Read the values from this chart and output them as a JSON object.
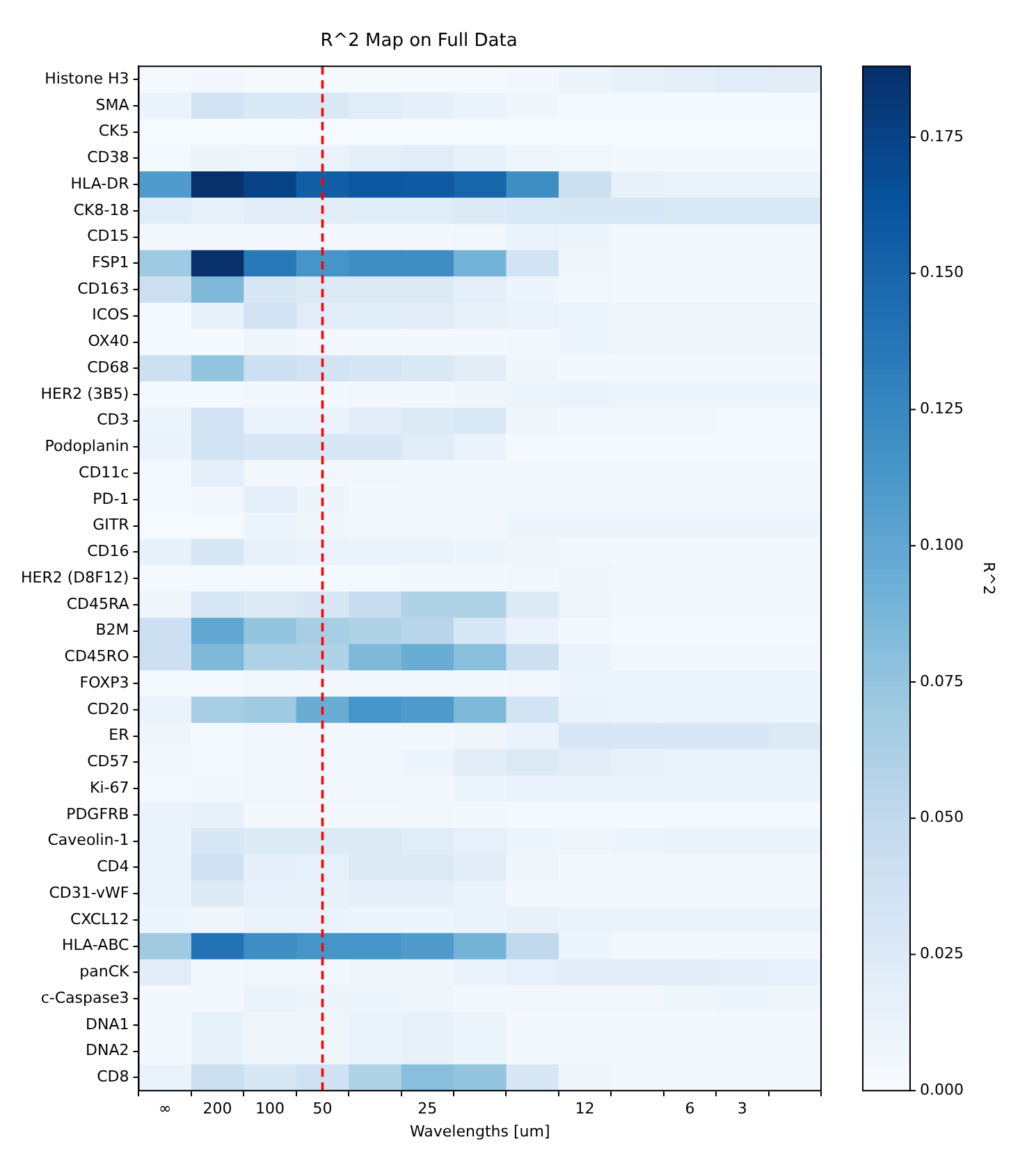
{
  "chart_data": {
    "type": "heatmap",
    "title": "R^2 Map on Full Data",
    "xlabel": "Wavelengths [um]",
    "clabel": "R^2",
    "categories": [
      "∞",
      "200",
      "100",
      "50",
      null,
      "25",
      null,
      null,
      "12",
      null,
      "6",
      "3",
      null
    ],
    "y_categories": [
      "Histone H3",
      "SMA",
      "CK5",
      "CD38",
      "HLA-DR",
      "CK8-18",
      "CD15",
      "FSP1",
      "CD163",
      "ICOS",
      "OX40",
      "CD68",
      "HER2 (3B5)",
      "CD3",
      "Podoplanin",
      "CD11c",
      "PD-1",
      "GITR",
      "CD16",
      "HER2 (D8F12)",
      "CD45RA",
      "B2M",
      "CD45RO",
      "FOXP3",
      "CD20",
      "ER",
      "CD57",
      "Ki-67",
      "PDGFRB",
      "Caveolin-1",
      "CD4",
      "CD31-vWF",
      "CXCL12",
      "HLA-ABC",
      "panCK",
      "c-Caspase3",
      "DNA1",
      "DNA2",
      "CD8"
    ],
    "cells": [
      [
        0.003,
        0.005,
        0.003,
        0.003,
        0.003,
        0.003,
        0.003,
        0.004,
        0.01,
        0.015,
        0.018,
        0.022,
        0.02
      ],
      [
        0.012,
        0.035,
        0.028,
        0.028,
        0.022,
        0.018,
        0.012,
        0.008,
        0.003,
        0.003,
        0.003,
        0.003,
        0.003
      ],
      [
        0.002,
        0.002,
        0.002,
        0.002,
        0.002,
        0.002,
        0.002,
        0.002,
        0.002,
        0.002,
        0.002,
        0.002,
        0.002
      ],
      [
        0.003,
        0.01,
        0.008,
        0.012,
        0.018,
        0.022,
        0.015,
        0.008,
        0.006,
        0.005,
        0.005,
        0.005,
        0.005
      ],
      [
        0.11,
        0.188,
        0.175,
        0.155,
        0.16,
        0.158,
        0.15,
        0.12,
        0.04,
        0.015,
        0.012,
        0.012,
        0.012
      ],
      [
        0.022,
        0.015,
        0.02,
        0.02,
        0.022,
        0.022,
        0.025,
        0.028,
        0.03,
        0.03,
        0.028,
        0.028,
        0.028
      ],
      [
        0.006,
        0.004,
        0.004,
        0.004,
        0.004,
        0.004,
        0.006,
        0.012,
        0.01,
        0.005,
        0.005,
        0.005,
        0.005
      ],
      [
        0.07,
        0.188,
        0.135,
        0.115,
        0.12,
        0.12,
        0.09,
        0.035,
        0.008,
        0.004,
        0.004,
        0.004,
        0.004
      ],
      [
        0.04,
        0.085,
        0.03,
        0.025,
        0.025,
        0.025,
        0.018,
        0.01,
        0.006,
        0.004,
        0.004,
        0.004,
        0.004
      ],
      [
        0.003,
        0.015,
        0.035,
        0.022,
        0.022,
        0.02,
        0.015,
        0.012,
        0.01,
        0.008,
        0.008,
        0.008,
        0.008
      ],
      [
        0.003,
        0.003,
        0.008,
        0.004,
        0.004,
        0.004,
        0.004,
        0.006,
        0.01,
        0.008,
        0.008,
        0.008,
        0.008
      ],
      [
        0.04,
        0.075,
        0.04,
        0.035,
        0.032,
        0.028,
        0.02,
        0.008,
        0.004,
        0.004,
        0.004,
        0.004,
        0.004
      ],
      [
        0.003,
        0.003,
        0.004,
        0.004,
        0.006,
        0.006,
        0.008,
        0.01,
        0.012,
        0.01,
        0.01,
        0.01,
        0.01
      ],
      [
        0.01,
        0.035,
        0.012,
        0.012,
        0.02,
        0.025,
        0.028,
        0.008,
        0.004,
        0.004,
        0.004,
        0.003,
        0.003
      ],
      [
        0.012,
        0.035,
        0.03,
        0.03,
        0.03,
        0.022,
        0.012,
        0.003,
        0.003,
        0.003,
        0.003,
        0.003,
        0.003
      ],
      [
        0.003,
        0.018,
        0.006,
        0.006,
        0.006,
        0.005,
        0.005,
        0.004,
        0.004,
        0.004,
        0.004,
        0.004,
        0.004
      ],
      [
        0.003,
        0.006,
        0.018,
        0.01,
        0.005,
        0.004,
        0.004,
        0.004,
        0.004,
        0.004,
        0.004,
        0.004,
        0.004
      ],
      [
        0.002,
        0.002,
        0.01,
        0.008,
        0.006,
        0.006,
        0.006,
        0.01,
        0.01,
        0.01,
        0.01,
        0.01,
        0.01
      ],
      [
        0.015,
        0.03,
        0.015,
        0.012,
        0.012,
        0.012,
        0.01,
        0.008,
        0.006,
        0.006,
        0.006,
        0.006,
        0.006
      ],
      [
        0.003,
        0.003,
        0.003,
        0.003,
        0.003,
        0.004,
        0.004,
        0.006,
        0.008,
        0.006,
        0.006,
        0.006,
        0.006
      ],
      [
        0.008,
        0.03,
        0.025,
        0.03,
        0.045,
        0.06,
        0.06,
        0.025,
        0.008,
        0.004,
        0.004,
        0.004,
        0.004
      ],
      [
        0.04,
        0.1,
        0.075,
        0.065,
        0.06,
        0.055,
        0.03,
        0.012,
        0.004,
        0.003,
        0.003,
        0.003,
        0.003
      ],
      [
        0.04,
        0.085,
        0.06,
        0.06,
        0.085,
        0.095,
        0.08,
        0.04,
        0.012,
        0.006,
        0.006,
        0.006,
        0.006
      ],
      [
        0.003,
        0.003,
        0.006,
        0.004,
        0.004,
        0.004,
        0.005,
        0.006,
        0.01,
        0.01,
        0.01,
        0.01,
        0.01
      ],
      [
        0.012,
        0.065,
        0.07,
        0.095,
        0.115,
        0.11,
        0.085,
        0.035,
        0.012,
        0.01,
        0.01,
        0.01,
        0.01
      ],
      [
        0.008,
        0.003,
        0.006,
        0.006,
        0.006,
        0.006,
        0.008,
        0.012,
        0.03,
        0.03,
        0.03,
        0.03,
        0.025
      ],
      [
        0.006,
        0.003,
        0.006,
        0.006,
        0.006,
        0.01,
        0.02,
        0.025,
        0.02,
        0.015,
        0.013,
        0.013,
        0.013
      ],
      [
        0.003,
        0.004,
        0.006,
        0.006,
        0.006,
        0.006,
        0.01,
        0.012,
        0.012,
        0.012,
        0.012,
        0.012,
        0.012
      ],
      [
        0.012,
        0.015,
        0.004,
        0.005,
        0.005,
        0.006,
        0.004,
        0.003,
        0.003,
        0.003,
        0.003,
        0.003,
        0.003
      ],
      [
        0.012,
        0.03,
        0.025,
        0.025,
        0.025,
        0.022,
        0.016,
        0.01,
        0.008,
        0.01,
        0.012,
        0.012,
        0.012
      ],
      [
        0.012,
        0.038,
        0.018,
        0.016,
        0.025,
        0.025,
        0.02,
        0.008,
        0.005,
        0.005,
        0.005,
        0.005,
        0.005
      ],
      [
        0.012,
        0.025,
        0.016,
        0.015,
        0.018,
        0.018,
        0.012,
        0.006,
        0.005,
        0.005,
        0.005,
        0.005,
        0.005
      ],
      [
        0.01,
        0.008,
        0.012,
        0.012,
        0.01,
        0.01,
        0.012,
        0.014,
        0.012,
        0.012,
        0.012,
        0.012,
        0.012
      ],
      [
        0.07,
        0.14,
        0.12,
        0.115,
        0.115,
        0.11,
        0.09,
        0.05,
        0.01,
        0.005,
        0.005,
        0.005,
        0.005
      ],
      [
        0.02,
        0.004,
        0.006,
        0.006,
        0.008,
        0.008,
        0.012,
        0.016,
        0.02,
        0.02,
        0.02,
        0.018,
        0.016
      ],
      [
        0.004,
        0.004,
        0.012,
        0.01,
        0.01,
        0.008,
        0.006,
        0.006,
        0.006,
        0.006,
        0.008,
        0.01,
        0.008
      ],
      [
        0.004,
        0.015,
        0.008,
        0.008,
        0.012,
        0.015,
        0.01,
        0.005,
        0.004,
        0.004,
        0.004,
        0.004,
        0.004
      ],
      [
        0.004,
        0.015,
        0.008,
        0.008,
        0.012,
        0.015,
        0.01,
        0.005,
        0.004,
        0.004,
        0.004,
        0.004,
        0.004
      ],
      [
        0.012,
        0.04,
        0.03,
        0.038,
        0.06,
        0.08,
        0.075,
        0.03,
        0.008,
        0.004,
        0.004,
        0.004,
        0.004
      ]
    ],
    "clim": [
      0,
      0.188
    ],
    "cticks": [
      {
        "value": 0,
        "label": "0.000"
      },
      {
        "value": 0.025,
        "label": "0.025"
      },
      {
        "value": 0.05,
        "label": "0.050"
      },
      {
        "value": 0.075,
        "label": "0.075"
      },
      {
        "value": 0.1,
        "label": "0.100"
      },
      {
        "value": 0.125,
        "label": "0.125"
      },
      {
        "value": 0.15,
        "label": "0.150"
      },
      {
        "value": 0.175,
        "label": "0.175"
      }
    ],
    "ref_lines": [
      {
        "axis": "x",
        "value": "50",
        "color": "#ff0000",
        "line_style": "dashed"
      }
    ],
    "legend": false
  }
}
